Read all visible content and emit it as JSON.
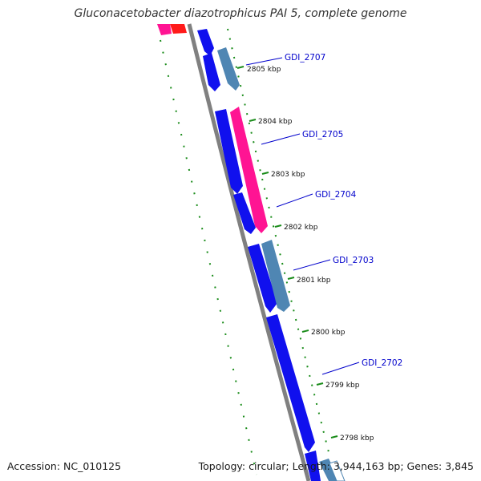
{
  "title": "Gluconacetobacter diazotrophicus PAI 5, complete genome",
  "footer": {
    "accession": "Accession: NC_010125",
    "summary": "Topology: circular; Length: 3,944,163 bp; Genes: 3,845"
  },
  "colors": {
    "backbone": "#808080",
    "tick": "#1a8c1a",
    "cds_blue": "#1010ee",
    "cds_steel": "#4f86b3",
    "cds_pink": "#ff1493",
    "cds_red": "#ff1a1a",
    "label": "#0000cc"
  },
  "scale_ticks": [
    "2805 kbp",
    "2804 kbp",
    "2803 kbp",
    "2802 kbp",
    "2801 kbp",
    "2800 kbp",
    "2799 kbp",
    "2798 kbp"
  ],
  "gene_labels": [
    "GDI_2707",
    "GDI_2705",
    "GDI_2704",
    "GDI_2703",
    "GDI_2702"
  ]
}
